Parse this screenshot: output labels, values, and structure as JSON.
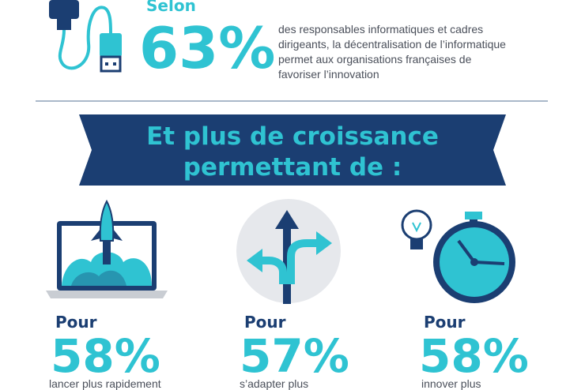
{
  "header": {
    "lead": "Selon",
    "figure": "63%",
    "description": [
      "des responsables informatiques et cadres",
      "dirigeants, la décentralisation de l’informatique",
      "permet aux organisations françaises de",
      "favoriser l’innovation"
    ]
  },
  "banner": {
    "lines": [
      "Et plus de croissance",
      "permettant de :"
    ]
  },
  "stats": [
    {
      "lead": "Pour",
      "figure": "58%",
      "text": "lancer plus rapidement"
    },
    {
      "lead": "Pour",
      "figure": "57%",
      "text": "s’adapter plus"
    },
    {
      "lead": "Pour",
      "figure": "58%",
      "text": "innover plus"
    }
  ]
}
